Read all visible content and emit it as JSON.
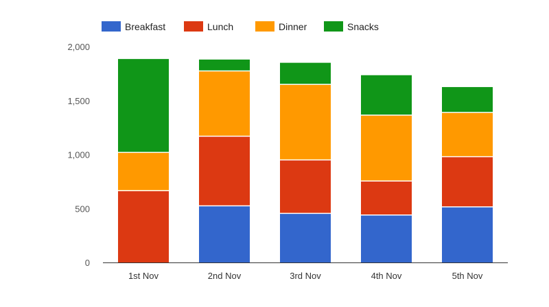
{
  "chart_data": {
    "type": "bar",
    "stacked": true,
    "categories": [
      "1st Nov",
      "2nd Nov",
      "3rd Nov",
      "4th Nov",
      "5th Nov"
    ],
    "series": [
      {
        "name": "Breakfast",
        "color": "#3366cc",
        "values": [
          0,
          525,
          455,
          440,
          515
        ]
      },
      {
        "name": "Lunch",
        "color": "#dc3912",
        "values": [
          665,
          645,
          495,
          315,
          465
        ]
      },
      {
        "name": "Dinner",
        "color": "#ff9900",
        "values": [
          355,
          605,
          700,
          610,
          410
        ]
      },
      {
        "name": "Snacks",
        "color": "#109618",
        "values": [
          865,
          105,
          200,
          370,
          235
        ]
      }
    ],
    "ylim": [
      0,
      2000
    ],
    "yticks": [
      0,
      500,
      1000,
      1500,
      2000
    ],
    "ytick_labels": [
      "0",
      "500",
      "1,000",
      "1,500",
      "2,000"
    ],
    "grid": false,
    "legend_position": "top-left"
  }
}
